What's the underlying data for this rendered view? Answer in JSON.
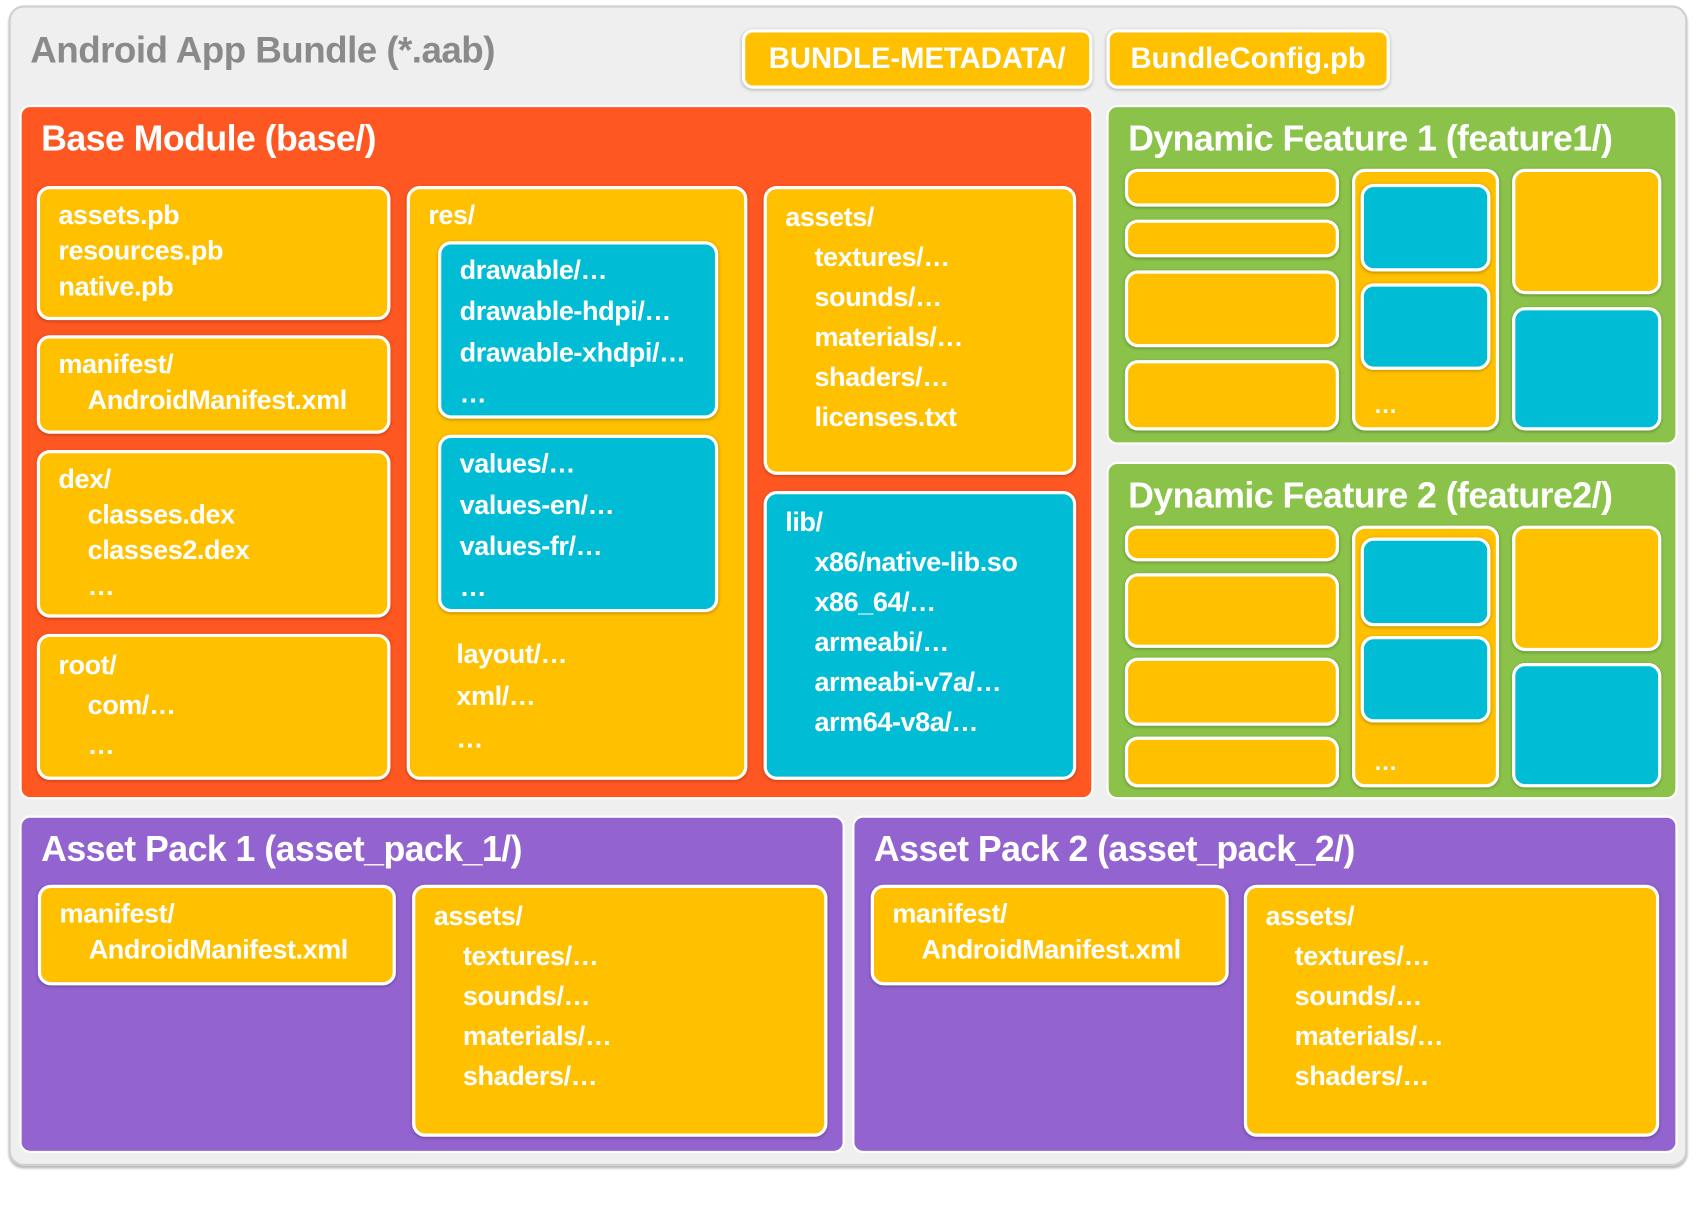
{
  "title": "Android App Bundle (*.aab)",
  "header_buttons": [
    "BUNDLE-METADATA/",
    "BundleConfig.pb"
  ],
  "colors": {
    "base": "#ff5722",
    "feature": "#8bc34a",
    "asset_pack": "#9363cf",
    "file_box": "#ffc000",
    "native_box": "#00bcd4",
    "frame": "#efefef"
  },
  "base": {
    "title": "Base Module (base/)",
    "protos": {
      "items": [
        "assets.pb",
        "resources.pb",
        "native.pb"
      ]
    },
    "manifest": {
      "label": "manifest/",
      "children": [
        "AndroidManifest.xml"
      ]
    },
    "dex": {
      "label": "dex/",
      "children": [
        "classes.dex",
        "classes2.dex",
        "…"
      ]
    },
    "root": {
      "label": "root/",
      "children": [
        "com/…",
        "…"
      ]
    },
    "res": {
      "label": "res/",
      "drawables": [
        "drawable/…",
        "drawable-hdpi/…",
        "drawable-xhdpi/…",
        "…"
      ],
      "values": [
        "values/…",
        "values-en/…",
        "values-fr/…",
        "…"
      ],
      "others": [
        "layout/…",
        "xml/…",
        "…"
      ]
    },
    "assets": {
      "label": "assets/",
      "children": [
        "textures/…",
        "sounds/…",
        "materials/…",
        "shaders/…",
        "licenses.txt"
      ]
    },
    "lib": {
      "label": "lib/",
      "children": [
        "x86/native-lib.so",
        "x86_64/…",
        "armeabi/…",
        "armeabi-v7a/…",
        "arm64-v8a/…"
      ]
    }
  },
  "feature1": {
    "title": "Dynamic Feature 1 (feature1/)",
    "ellipsis": "…"
  },
  "feature2": {
    "title": "Dynamic Feature 2 (feature2/)",
    "ellipsis": "…"
  },
  "asset_pack_1": {
    "title": "Asset Pack 1 (asset_pack_1/)",
    "manifest": {
      "label": "manifest/",
      "children": [
        "AndroidManifest.xml"
      ]
    },
    "assets": {
      "label": "assets/",
      "children": [
        "textures/…",
        "sounds/…",
        "materials/…",
        "shaders/…"
      ]
    }
  },
  "asset_pack_2": {
    "title": "Asset Pack 2 (asset_pack_2/)",
    "manifest": {
      "label": "manifest/",
      "children": [
        "AndroidManifest.xml"
      ]
    },
    "assets": {
      "label": "assets/",
      "children": [
        "textures/…",
        "sounds/…",
        "materials/…",
        "shaders/…"
      ]
    }
  }
}
